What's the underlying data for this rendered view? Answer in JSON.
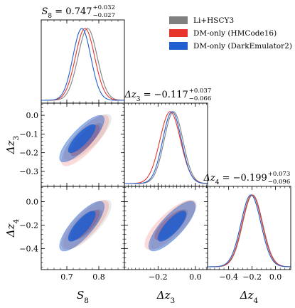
{
  "chart_data": {
    "type": "corner",
    "parameters": [
      {
        "id": "S8",
        "label": "S_8",
        "range": [
          0.62,
          0.88
        ],
        "ticks": [
          0.7,
          0.8
        ]
      },
      {
        "id": "dz3",
        "label": "Δz_3",
        "range": [
          -0.38,
          0.065
        ],
        "ticks": [
          0.0,
          -0.1,
          -0.2,
          -0.3
        ],
        "ticks_x": [
          -0.2,
          0.0
        ]
      },
      {
        "id": "dz4",
        "label": "Δz_4",
        "range": [
          -0.58,
          0.13
        ],
        "ticks": [
          0.0,
          -0.2,
          -0.4
        ],
        "ticks_x": [
          -0.4,
          -0.2,
          0.0
        ]
      }
    ],
    "tick_labels": {
      "S8_y": [],
      "dz3_y": [
        "0.0",
        "−0.1",
        "−0.2",
        "−0.3"
      ],
      "dz4_y": [
        "0.0",
        "−0.2",
        "−0.4"
      ],
      "S8_x": [
        "0.7",
        "0.8"
      ],
      "dz3_x": [
        "−0.2",
        "0.0"
      ],
      "dz4_x": [
        "−0.4",
        "−0.2",
        "0.0"
      ]
    },
    "titles": [
      {
        "param": "S8",
        "name": "S",
        "sub": "8",
        "value": " = 0.747",
        "plus": "+0.032",
        "minus": "−0.027"
      },
      {
        "param": "dz3",
        "name": "Δz",
        "sub": "3",
        "value": " = −0.117",
        "plus": "+0.037",
        "minus": "−0.066"
      },
      {
        "param": "dz4",
        "name": "Δz",
        "sub": "4",
        "value": " = −0.199",
        "plus": "+0.073",
        "minus": "−0.096"
      }
    ],
    "axis_labels": {
      "x": [
        {
          "name": "S",
          "sub": "8"
        },
        {
          "name": "Δz",
          "sub": "3"
        },
        {
          "name": "Δz",
          "sub": "4"
        }
      ],
      "y": [
        {
          "name": "Δz",
          "sub": "3"
        },
        {
          "name": "Δz",
          "sub": "4"
        }
      ]
    },
    "legend": {
      "placement": "top-right",
      "entries": [
        "Li+HSCY3",
        "DM-only (HMCode16)",
        "DM-only (DarkEmulator2)"
      ]
    },
    "series": [
      {
        "name": "Li+HSCY3",
        "color": "#808080",
        "mean": {
          "S8": 0.765,
          "dz3": -0.117,
          "dz4": -0.195
        },
        "sigma": {
          "S8": 0.03,
          "dz3": 0.05,
          "dz4": 0.085
        },
        "rho": {
          "S8_dz3": 0.8,
          "S8_dz4": 0.78,
          "dz3_dz4": 0.78
        }
      },
      {
        "name": "DM-only (HMCode16)",
        "color": "#e8352b",
        "mean": {
          "S8": 0.757,
          "dz3": -0.135,
          "dz4": -0.2
        },
        "sigma": {
          "S8": 0.03,
          "dz3": 0.055,
          "dz4": 0.085
        },
        "rho": {
          "S8_dz3": 0.8,
          "S8_dz4": 0.78,
          "dz3_dz4": 0.78
        }
      },
      {
        "name": "DM-only (DarkEmulator2)",
        "color": "#1f5fcf",
        "mean": {
          "S8": 0.747,
          "dz3": -0.125,
          "dz4": -0.21
        },
        "sigma": {
          "S8": 0.028,
          "dz3": 0.05,
          "dz4": 0.085
        },
        "rho": {
          "S8_dz3": 0.82,
          "S8_dz4": 0.8,
          "dz3_dz4": 0.8
        }
      }
    ]
  }
}
